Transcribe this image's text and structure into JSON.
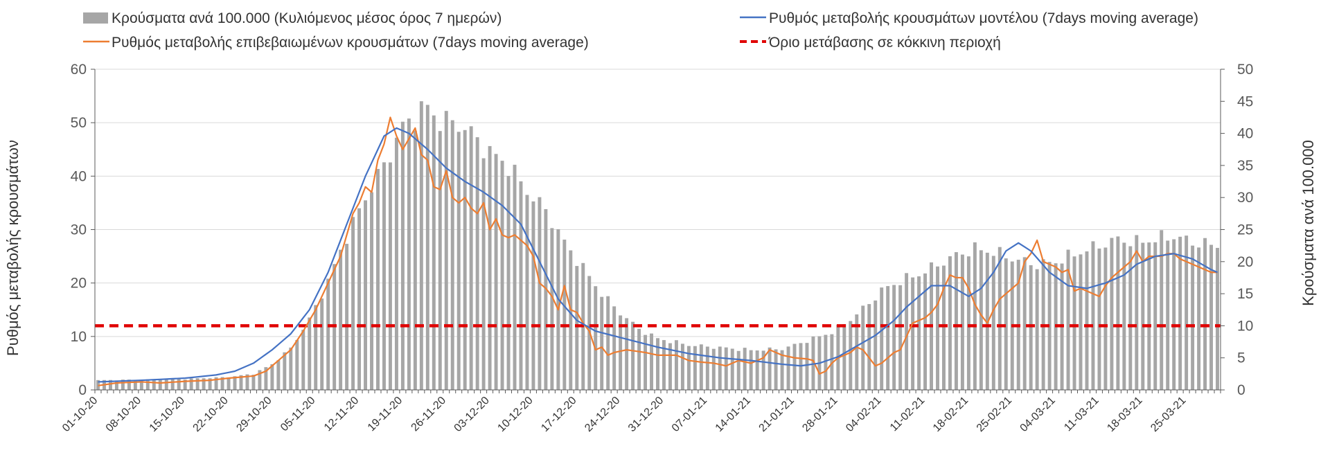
{
  "chart_data": {
    "type": "bar+line",
    "title": "",
    "legend": {
      "bars": "Κρούσματα ανά 100.000 (Κυλιόμενος μέσος όρος 7 ημερών)",
      "model": "Ρυθμός μεταβολής κρουσμάτων μοντέλου (7days moving average)",
      "confirmed": "Ρυθμός μεταβολής επιβεβαιωμένων κρουσμάτων (7days moving average)",
      "threshold": "Όριο μετάβασης σε κόκκινη περιοχή"
    },
    "ylabel_left": "Ρυθμός μεταβολής κρουσμάτων",
    "ylabel_right": "Κρούσματα ανά 100.000",
    "ylim_left": [
      0,
      60
    ],
    "ylim_right": [
      0,
      50
    ],
    "yticks_left": [
      "0",
      "10",
      "20",
      "30",
      "40",
      "50",
      "60"
    ],
    "yticks_right": [
      "0",
      "5",
      "10",
      "15",
      "20",
      "25",
      "30",
      "35",
      "40",
      "45",
      "50"
    ],
    "x_tick_labels": [
      "01-10-20",
      "08-10-20",
      "15-10-20",
      "22-10-20",
      "29-10-20",
      "05-11-20",
      "12-11-20",
      "19-11-20",
      "26-11-20",
      "03-12-20",
      "10-12-20",
      "17-12-20",
      "24-12-20",
      "31-12-20",
      "07-01-21",
      "14-01-21",
      "21-01-21",
      "28-01-21",
      "04-02-21",
      "11-02-21",
      "18-02-21",
      "25-02-21",
      "04-03-21",
      "11-03-21",
      "18-03-21",
      "25-03-21"
    ],
    "threshold_value": 12,
    "colors": {
      "bars": "#a6a6a6",
      "model": "#4472c4",
      "confirmed": "#ed7d31",
      "threshold": "#e00000"
    },
    "bar_keypoints": [
      [
        0,
        1.5
      ],
      [
        7,
        1.6
      ],
      [
        14,
        1.7
      ],
      [
        21,
        2.0
      ],
      [
        25,
        2.5
      ],
      [
        28,
        4.0
      ],
      [
        31,
        6.5
      ],
      [
        34,
        11
      ],
      [
        37,
        17
      ],
      [
        40,
        24
      ],
      [
        43,
        30
      ],
      [
        46,
        35
      ],
      [
        49,
        41
      ],
      [
        52,
        43.5
      ],
      [
        53,
        44
      ],
      [
        55,
        42
      ],
      [
        58,
        41.5
      ],
      [
        60,
        40
      ],
      [
        63,
        37
      ],
      [
        66,
        35
      ],
      [
        69,
        31
      ],
      [
        72,
        28
      ],
      [
        75,
        23
      ],
      [
        78,
        19
      ],
      [
        81,
        15
      ],
      [
        84,
        12
      ],
      [
        87,
        9.5
      ],
      [
        90,
        8
      ],
      [
        95,
        7
      ],
      [
        100,
        6.6
      ],
      [
        105,
        6.2
      ],
      [
        110,
        6.4
      ],
      [
        112,
        7
      ],
      [
        115,
        8
      ],
      [
        118,
        9
      ],
      [
        121,
        11
      ],
      [
        124,
        13.5
      ],
      [
        126,
        15.5
      ],
      [
        129,
        17
      ],
      [
        132,
        18
      ],
      [
        135,
        19.5
      ],
      [
        138,
        21
      ],
      [
        141,
        22
      ],
      [
        144,
        21.5
      ],
      [
        147,
        20.5
      ],
      [
        151,
        19.5
      ],
      [
        154,
        20
      ],
      [
        158,
        21.5
      ],
      [
        161,
        22.5
      ],
      [
        164,
        23.5
      ],
      [
        167,
        23
      ],
      [
        170,
        23.5
      ],
      [
        173,
        24
      ],
      [
        176,
        23
      ],
      [
        180,
        22.5
      ]
    ],
    "model_keypoints": [
      [
        0,
        1.5
      ],
      [
        7,
        1.8
      ],
      [
        14,
        2.2
      ],
      [
        19,
        2.8
      ],
      [
        22,
        3.5
      ],
      [
        25,
        5
      ],
      [
        28,
        7.5
      ],
      [
        31,
        10.5
      ],
      [
        34,
        15
      ],
      [
        37,
        22
      ],
      [
        40,
        31
      ],
      [
        43,
        40
      ],
      [
        46,
        47.5
      ],
      [
        48,
        49
      ],
      [
        50,
        48
      ],
      [
        53,
        45
      ],
      [
        56,
        41.5
      ],
      [
        59,
        39
      ],
      [
        62,
        37
      ],
      [
        65,
        34.5
      ],
      [
        68,
        31
      ],
      [
        71,
        24
      ],
      [
        74,
        17
      ],
      [
        77,
        13
      ],
      [
        80,
        11
      ],
      [
        85,
        9.5
      ],
      [
        90,
        8
      ],
      [
        95,
        6.8
      ],
      [
        100,
        6
      ],
      [
        105,
        5.5
      ],
      [
        110,
        4.8
      ],
      [
        113,
        4.5
      ],
      [
        116,
        5
      ],
      [
        119,
        6.2
      ],
      [
        122,
        8.2
      ],
      [
        125,
        10.2
      ],
      [
        128,
        13
      ],
      [
        130,
        15.5
      ],
      [
        132,
        17.5
      ],
      [
        134,
        19.5
      ],
      [
        137,
        19.5
      ],
      [
        140,
        17.5
      ],
      [
        142,
        19
      ],
      [
        144,
        22
      ],
      [
        146,
        26
      ],
      [
        148,
        27.5
      ],
      [
        150,
        26
      ],
      [
        153,
        22
      ],
      [
        156,
        19.5
      ],
      [
        159,
        19
      ],
      [
        162,
        20
      ],
      [
        165,
        21.5
      ],
      [
        167,
        23.5
      ],
      [
        170,
        25
      ],
      [
        173,
        25.5
      ],
      [
        176,
        24.5
      ],
      [
        179,
        22.5
      ],
      [
        180,
        22
      ]
    ],
    "confirmed_keypoints": [
      [
        0,
        0.8
      ],
      [
        3,
        1.3
      ],
      [
        7,
        1.5
      ],
      [
        10,
        1.3
      ],
      [
        14,
        1.6
      ],
      [
        18,
        1.8
      ],
      [
        21,
        2.2
      ],
      [
        25,
        2.6
      ],
      [
        27,
        3.5
      ],
      [
        29,
        5.5
      ],
      [
        31,
        7.5
      ],
      [
        33,
        11
      ],
      [
        35,
        15
      ],
      [
        37,
        20
      ],
      [
        39,
        25
      ],
      [
        40,
        29
      ],
      [
        41,
        33
      ],
      [
        42,
        35
      ],
      [
        43,
        38
      ],
      [
        44,
        37
      ],
      [
        45,
        43
      ],
      [
        46,
        46
      ],
      [
        47,
        51
      ],
      [
        48,
        47.5
      ],
      [
        49,
        45
      ],
      [
        50,
        47
      ],
      [
        51,
        49
      ],
      [
        52,
        44
      ],
      [
        53,
        43
      ],
      [
        54,
        38
      ],
      [
        55,
        37.5
      ],
      [
        56,
        41
      ],
      [
        57,
        36
      ],
      [
        58,
        35
      ],
      [
        59,
        36
      ],
      [
        60,
        34
      ],
      [
        61,
        33
      ],
      [
        62,
        35
      ],
      [
        63,
        30
      ],
      [
        64,
        32
      ],
      [
        65,
        29
      ],
      [
        66,
        28.5
      ],
      [
        67,
        29
      ],
      [
        68,
        28
      ],
      [
        69,
        27
      ],
      [
        70,
        25
      ],
      [
        71,
        20
      ],
      [
        72,
        19
      ],
      [
        73,
        17.5
      ],
      [
        74,
        15
      ],
      [
        75,
        19.5
      ],
      [
        76,
        15
      ],
      [
        77,
        14.5
      ],
      [
        78,
        12.5
      ],
      [
        79,
        11
      ],
      [
        80,
        7.5
      ],
      [
        81,
        8
      ],
      [
        82,
        6.5
      ],
      [
        83,
        7
      ],
      [
        85,
        7.5
      ],
      [
        88,
        7
      ],
      [
        90,
        6.5
      ],
      [
        93,
        6.5
      ],
      [
        95,
        5.5
      ],
      [
        97,
        5.2
      ],
      [
        99,
        5
      ],
      [
        101,
        4.5
      ],
      [
        103,
        5.5
      ],
      [
        105,
        5
      ],
      [
        107,
        6
      ],
      [
        108,
        7.5
      ],
      [
        110,
        6.5
      ],
      [
        112,
        6
      ],
      [
        114,
        5.8
      ],
      [
        115,
        5.5
      ],
      [
        116,
        3
      ],
      [
        117,
        3.5
      ],
      [
        118,
        5
      ],
      [
        119,
        6
      ],
      [
        120,
        6.5
      ],
      [
        121,
        7
      ],
      [
        122,
        8
      ],
      [
        123,
        7.5
      ],
      [
        124,
        6
      ],
      [
        125,
        4.5
      ],
      [
        126,
        5
      ],
      [
        127,
        6
      ],
      [
        128,
        7
      ],
      [
        129,
        7.5
      ],
      [
        130,
        10
      ],
      [
        131,
        12.5
      ],
      [
        132,
        13
      ],
      [
        133,
        13.5
      ],
      [
        134,
        14.5
      ],
      [
        135,
        16
      ],
      [
        136,
        19
      ],
      [
        137,
        21.5
      ],
      [
        138,
        21
      ],
      [
        139,
        21
      ],
      [
        140,
        19
      ],
      [
        141,
        16
      ],
      [
        142,
        14
      ],
      [
        143,
        12.5
      ],
      [
        144,
        15
      ],
      [
        145,
        17
      ],
      [
        146,
        18
      ],
      [
        147,
        19
      ],
      [
        148,
        20
      ],
      [
        149,
        24
      ],
      [
        150,
        25.5
      ],
      [
        151,
        28
      ],
      [
        152,
        24
      ],
      [
        153,
        23.5
      ],
      [
        154,
        23
      ],
      [
        155,
        22
      ],
      [
        156,
        22.5
      ],
      [
        157,
        18.5
      ],
      [
        158,
        19
      ],
      [
        159,
        18.5
      ],
      [
        160,
        18
      ],
      [
        161,
        17.5
      ],
      [
        162,
        19.5
      ],
      [
        163,
        21
      ],
      [
        164,
        22
      ],
      [
        165,
        23
      ],
      [
        166,
        24
      ],
      [
        167,
        26
      ],
      [
        168,
        24
      ],
      [
        169,
        25
      ],
      [
        170,
        25
      ],
      [
        171,
        25
      ],
      [
        172,
        25.5
      ],
      [
        173,
        25.5
      ],
      [
        174,
        24.5
      ],
      [
        175,
        24
      ],
      [
        176,
        23.5
      ],
      [
        177,
        23
      ],
      [
        178,
        22.5
      ],
      [
        179,
        22
      ],
      [
        180,
        22
      ]
    ]
  }
}
